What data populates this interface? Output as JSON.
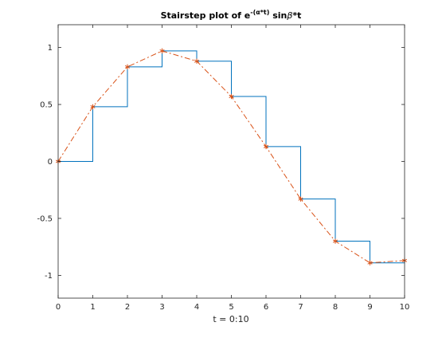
{
  "chart_data": {
    "type": "line",
    "title": {
      "prefix": "Stairstep plot of e",
      "exponent": "-(α*t)",
      "suffix_pre": " sin",
      "beta": "β",
      "suffix_post": "*t"
    },
    "xlabel": "t = 0:10",
    "ylabel": "",
    "xlim": [
      0,
      10
    ],
    "ylim": [
      -1.2,
      1.2
    ],
    "xticks": [
      "0",
      "1",
      "2",
      "3",
      "4",
      "5",
      "6",
      "7",
      "8",
      "9",
      "10"
    ],
    "yticks": [
      "-1",
      "-0.5",
      "0",
      "0.5",
      "1"
    ],
    "grid": false,
    "x": [
      0,
      1,
      2,
      3,
      4,
      5,
      6,
      7,
      8,
      9,
      10
    ],
    "series": [
      {
        "type": "stairs",
        "color": "#0072BD",
        "values": [
          0,
          0.48,
          0.83,
          0.97,
          0.88,
          0.57,
          0.13,
          -0.33,
          -0.7,
          -0.89,
          -0.87
        ]
      },
      {
        "type": "line",
        "line_style": "dashdot",
        "marker": "*",
        "color": "#D95319",
        "values": [
          0,
          0.48,
          0.83,
          0.97,
          0.88,
          0.57,
          0.13,
          -0.33,
          -0.7,
          -0.89,
          -0.87
        ]
      }
    ]
  }
}
